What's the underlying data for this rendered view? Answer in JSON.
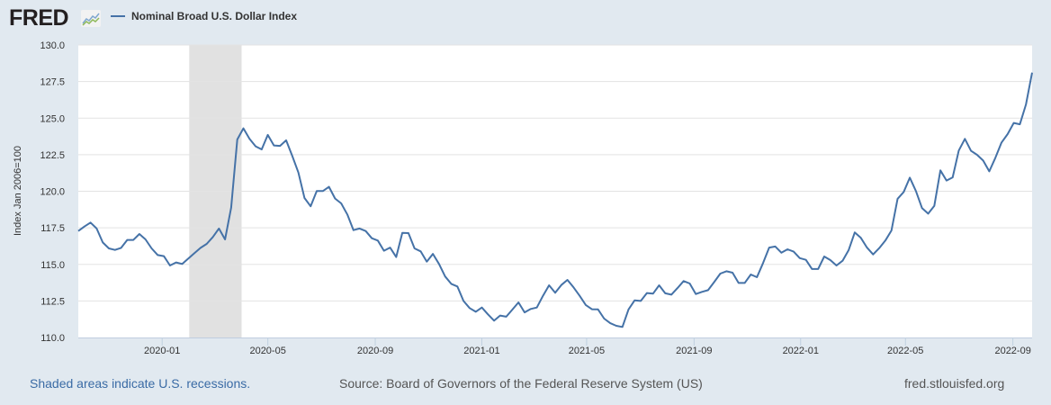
{
  "header": {
    "logo_text": "FRED",
    "legend_label": "Nominal Broad U.S. Dollar Index"
  },
  "footer": {
    "recession_note": "Shaded areas indicate U.S. recessions.",
    "source": "Source: Board of Governors of the Federal Reserve System (US)",
    "site": "fred.stlouisfed.org"
  },
  "chart_data": {
    "type": "line",
    "title": "",
    "xlabel": "",
    "ylabel": "Index Jan 2006=100",
    "ylim": [
      110,
      130
    ],
    "yticks": [
      "110.0",
      "112.5",
      "115.0",
      "117.5",
      "120.0",
      "122.5",
      "125.0",
      "127.5",
      "130.0"
    ],
    "xticks": [
      "2020-01",
      "2020-05",
      "2020-09",
      "2021-01",
      "2021-05",
      "2021-09",
      "2022-01",
      "2022-05",
      "2022-09"
    ],
    "grid": true,
    "legend_position": "top-left",
    "line_color": "#4572a7",
    "recession_color": "#e1e1e1",
    "recessions": [
      [
        "2020-02-01",
        "2020-04-01"
      ]
    ],
    "series": [
      {
        "name": "Nominal Broad U.S. Dollar Index",
        "x": [
          "2019-09-27",
          "2019-10-04",
          "2019-10-11",
          "2019-10-18",
          "2019-10-25",
          "2019-11-01",
          "2019-11-08",
          "2019-11-15",
          "2019-11-22",
          "2019-11-29",
          "2019-12-06",
          "2019-12-13",
          "2019-12-20",
          "2019-12-27",
          "2020-01-03",
          "2020-01-10",
          "2020-01-17",
          "2020-01-24",
          "2020-01-31",
          "2020-02-07",
          "2020-02-14",
          "2020-02-21",
          "2020-02-28",
          "2020-03-06",
          "2020-03-13",
          "2020-03-20",
          "2020-03-27",
          "2020-04-03",
          "2020-04-10",
          "2020-04-17",
          "2020-04-24",
          "2020-05-01",
          "2020-05-08",
          "2020-05-15",
          "2020-05-22",
          "2020-05-29",
          "2020-06-05",
          "2020-06-12",
          "2020-06-19",
          "2020-06-26",
          "2020-07-03",
          "2020-07-10",
          "2020-07-17",
          "2020-07-24",
          "2020-07-31",
          "2020-08-07",
          "2020-08-14",
          "2020-08-21",
          "2020-08-28",
          "2020-09-04",
          "2020-09-11",
          "2020-09-18",
          "2020-09-25",
          "2020-10-02",
          "2020-10-09",
          "2020-10-16",
          "2020-10-23",
          "2020-10-30",
          "2020-11-06",
          "2020-11-13",
          "2020-11-20",
          "2020-11-27",
          "2020-12-04",
          "2020-12-11",
          "2020-12-18",
          "2020-12-25",
          "2021-01-01",
          "2021-01-08",
          "2021-01-15",
          "2021-01-22",
          "2021-01-29",
          "2021-02-05",
          "2021-02-12",
          "2021-02-19",
          "2021-02-26",
          "2021-03-05",
          "2021-03-12",
          "2021-03-19",
          "2021-03-26",
          "2021-04-02",
          "2021-04-09",
          "2021-04-16",
          "2021-04-23",
          "2021-04-30",
          "2021-05-07",
          "2021-05-14",
          "2021-05-21",
          "2021-05-28",
          "2021-06-04",
          "2021-06-11",
          "2021-06-18",
          "2021-06-25",
          "2021-07-02",
          "2021-07-09",
          "2021-07-16",
          "2021-07-23",
          "2021-07-30",
          "2021-08-06",
          "2021-08-13",
          "2021-08-20",
          "2021-08-27",
          "2021-09-03",
          "2021-09-10",
          "2021-09-17",
          "2021-09-24",
          "2021-10-01",
          "2021-10-08",
          "2021-10-15",
          "2021-10-22",
          "2021-10-29",
          "2021-11-05",
          "2021-11-12",
          "2021-11-19",
          "2021-11-26",
          "2021-12-03",
          "2021-12-10",
          "2021-12-17",
          "2021-12-24",
          "2021-12-31",
          "2022-01-07",
          "2022-01-14",
          "2022-01-21",
          "2022-01-28",
          "2022-02-04",
          "2022-02-11",
          "2022-02-18",
          "2022-02-25",
          "2022-03-04",
          "2022-03-11",
          "2022-03-18",
          "2022-03-25",
          "2022-04-01",
          "2022-04-08",
          "2022-04-15",
          "2022-04-22",
          "2022-04-29",
          "2022-05-06",
          "2022-05-13",
          "2022-05-20",
          "2022-05-27",
          "2022-06-03",
          "2022-06-10",
          "2022-06-17",
          "2022-06-24",
          "2022-07-01",
          "2022-07-08",
          "2022-07-15",
          "2022-07-22",
          "2022-07-29",
          "2022-08-05",
          "2022-08-12",
          "2022-08-19",
          "2022-08-26",
          "2022-09-02",
          "2022-09-09",
          "2022-09-16",
          "2022-09-23"
        ],
        "values": [
          117.28,
          117.59,
          117.86,
          117.45,
          116.5,
          116.09,
          115.99,
          116.13,
          116.67,
          116.67,
          117.08,
          116.71,
          116.09,
          115.64,
          115.56,
          114.92,
          115.13,
          115.03,
          115.4,
          115.77,
          116.13,
          116.4,
          116.87,
          117.45,
          116.71,
          118.88,
          123.54,
          124.3,
          123.58,
          123.07,
          122.86,
          123.85,
          123.13,
          123.1,
          123.48,
          122.41,
          121.28,
          119.54,
          118.97,
          120.01,
          120.01,
          120.3,
          119.5,
          119.17,
          118.41,
          117.34,
          117.45,
          117.28,
          116.79,
          116.63,
          115.93,
          116.15,
          115.5,
          117.16,
          117.14,
          116.09,
          115.89,
          115.19,
          115.72,
          115.03,
          114.17,
          113.67,
          113.49,
          112.5,
          112.01,
          111.76,
          112.05,
          111.58,
          111.15,
          111.5,
          111.42,
          111.91,
          112.4,
          111.72,
          111.95,
          112.05,
          112.85,
          113.57,
          113.06,
          113.59,
          113.94,
          113.43,
          112.85,
          112.22,
          111.93,
          111.92,
          111.29,
          110.98,
          110.8,
          110.72,
          111.92,
          112.54,
          112.5,
          113.04,
          113.0,
          113.57,
          113.02,
          112.93,
          113.38,
          113.86,
          113.69,
          112.97,
          113.12,
          113.24,
          113.79,
          114.37,
          114.53,
          114.43,
          113.73,
          113.73,
          114.31,
          114.12,
          115.09,
          116.15,
          116.22,
          115.8,
          116.03,
          115.87,
          115.43,
          115.31,
          114.68,
          114.68,
          115.54,
          115.29,
          114.92,
          115.25,
          115.99,
          117.18,
          116.81,
          116.15,
          115.68,
          116.11,
          116.63,
          117.32,
          119.48,
          119.95,
          120.93,
          120.01,
          118.84,
          118.47,
          119.0,
          121.43,
          120.73,
          120.95,
          122.78,
          123.58,
          122.76,
          122.49,
          122.1,
          121.36,
          122.29,
          123.33,
          123.91,
          124.67,
          124.58,
          125.94,
          128.11
        ]
      }
    ]
  }
}
